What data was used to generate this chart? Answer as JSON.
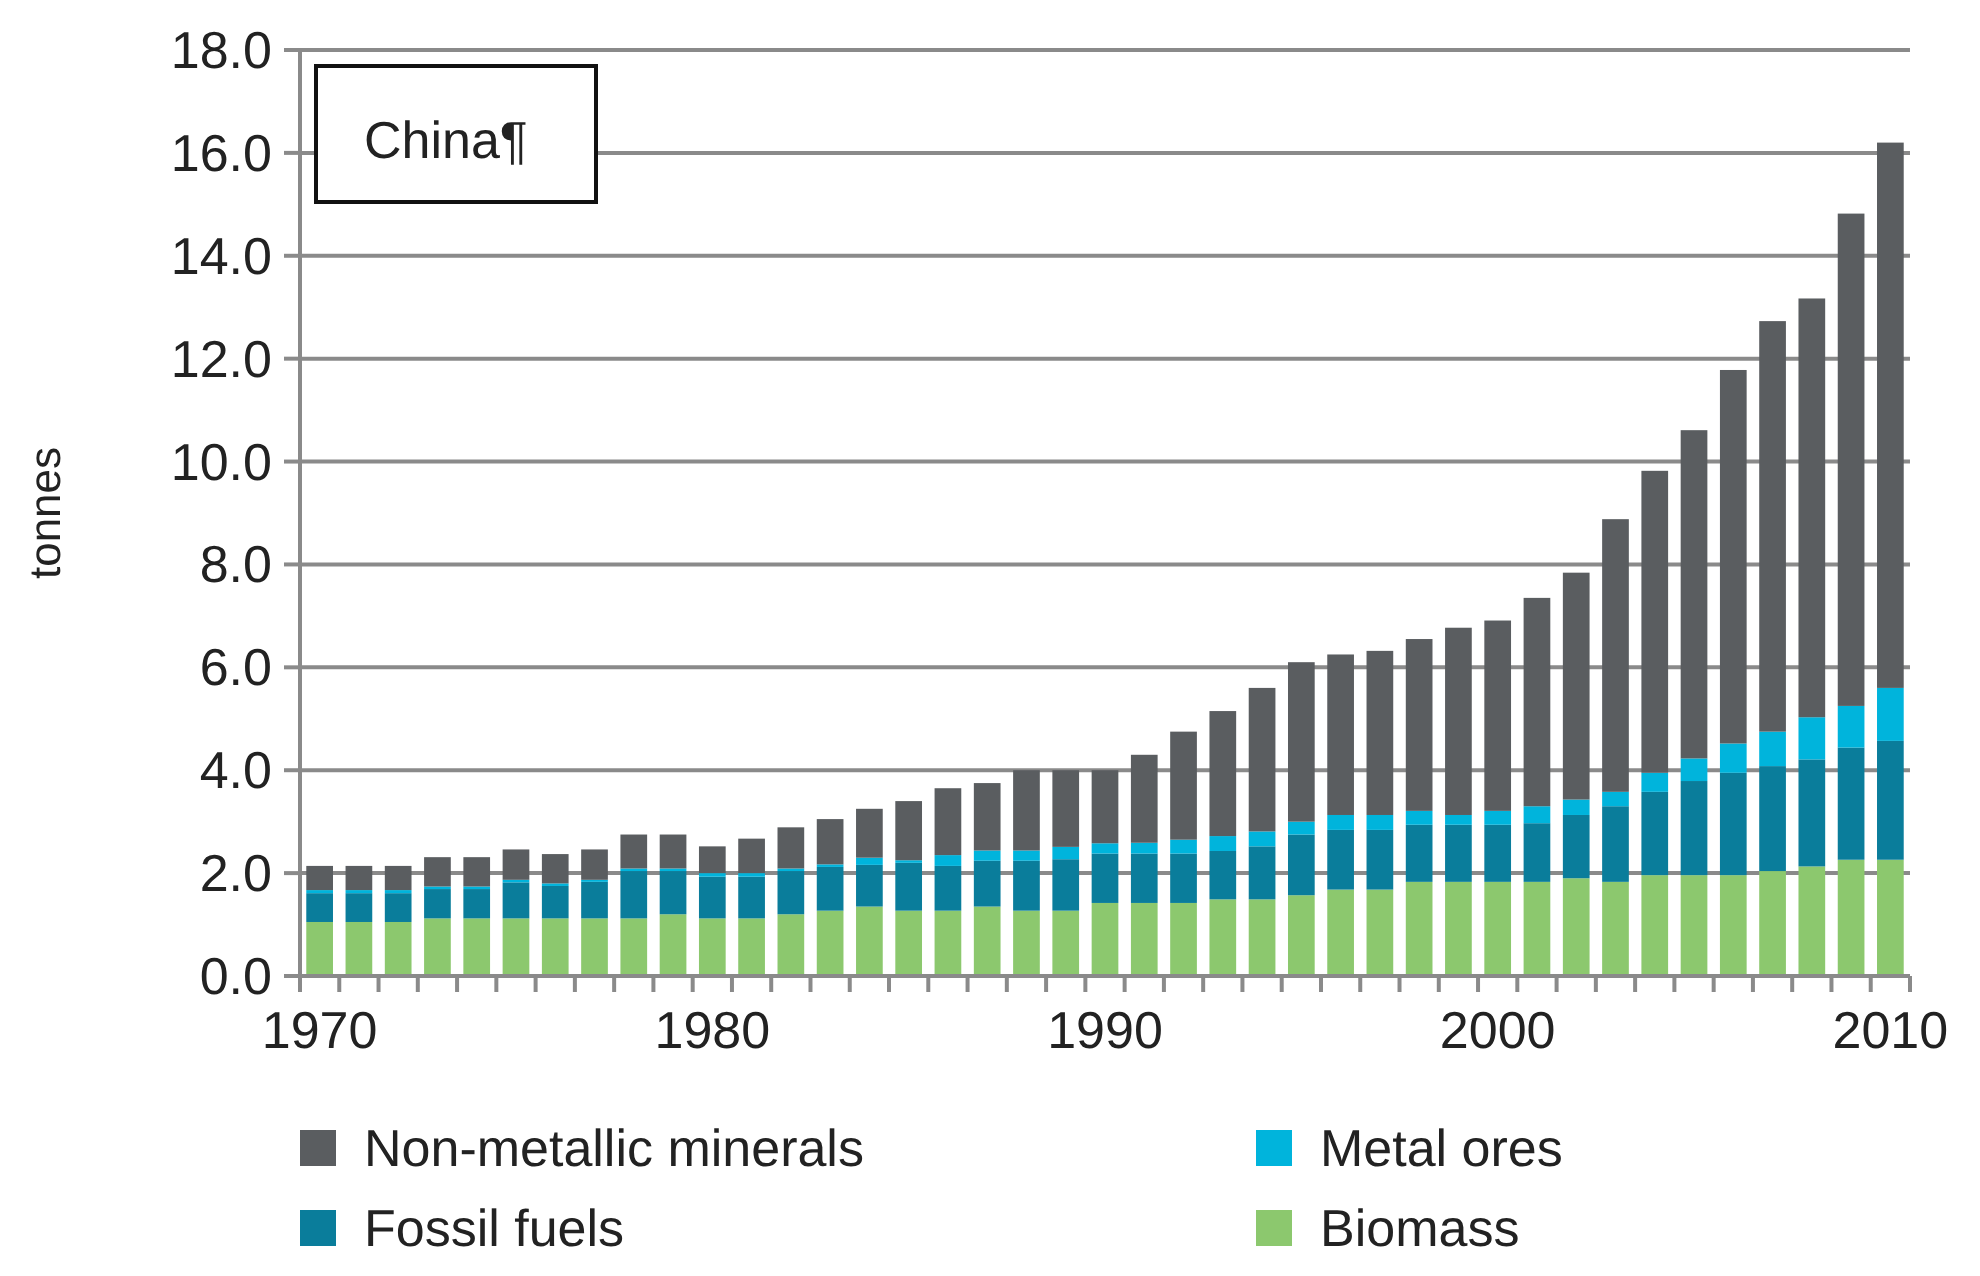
{
  "chart_data": {
    "type": "bar",
    "stacked": true,
    "ylabel": "tonnes",
    "annotations": [
      "China¶"
    ],
    "categories": [
      "1970",
      null,
      null,
      null,
      null,
      null,
      null,
      null,
      null,
      null,
      "1980",
      null,
      null,
      null,
      null,
      null,
      null,
      null,
      null,
      null,
      "1990",
      null,
      null,
      null,
      null,
      null,
      null,
      null,
      null,
      null,
      "2000",
      null,
      null,
      null,
      null,
      null,
      null,
      null,
      null,
      null,
      "2010"
    ],
    "series": [
      {
        "name": "Biomass",
        "color": "#8cc86e",
        "values": [
          1.05,
          1.05,
          1.05,
          1.12,
          1.12,
          1.12,
          1.12,
          1.12,
          1.12,
          1.2,
          1.12,
          1.12,
          1.2,
          1.27,
          1.35,
          1.27,
          1.27,
          1.35,
          1.27,
          1.27,
          1.42,
          1.42,
          1.42,
          1.49,
          1.49,
          1.57,
          1.68,
          1.68,
          1.83,
          1.83,
          1.83,
          1.83,
          1.9,
          1.83,
          1.96,
          1.96,
          1.96,
          2.04,
          2.13,
          2.26,
          2.26
        ]
      },
      {
        "name": "Fossil fuels",
        "color": "#0a7d9b",
        "values": [
          0.56,
          0.56,
          0.56,
          0.57,
          0.57,
          0.7,
          0.63,
          0.71,
          0.92,
          0.84,
          0.81,
          0.81,
          0.84,
          0.85,
          0.81,
          0.93,
          0.87,
          0.89,
          0.97,
          1.0,
          0.96,
          0.96,
          0.96,
          0.94,
          1.03,
          1.18,
          1.16,
          1.16,
          1.11,
          1.11,
          1.11,
          1.14,
          1.23,
          1.47,
          1.62,
          1.83,
          1.99,
          2.04,
          2.08,
          2.18,
          2.31
        ]
      },
      {
        "name": "Metal ores",
        "color": "#00b4dc",
        "values": [
          0.06,
          0.06,
          0.06,
          0.05,
          0.05,
          0.05,
          0.05,
          0.04,
          0.05,
          0.05,
          0.07,
          0.07,
          0.05,
          0.05,
          0.14,
          0.05,
          0.21,
          0.2,
          0.2,
          0.24,
          0.2,
          0.21,
          0.27,
          0.29,
          0.29,
          0.25,
          0.29,
          0.29,
          0.27,
          0.19,
          0.27,
          0.33,
          0.3,
          0.28,
          0.37,
          0.44,
          0.57,
          0.67,
          0.82,
          0.81,
          1.03
        ]
      },
      {
        "name": "Non-metallic minerals",
        "color": "#5a5d60",
        "values": [
          0.47,
          0.47,
          0.47,
          0.57,
          0.57,
          0.59,
          0.57,
          0.59,
          0.66,
          0.66,
          0.52,
          0.67,
          0.8,
          0.88,
          0.95,
          1.15,
          1.3,
          1.31,
          1.56,
          1.49,
          1.42,
          1.71,
          2.1,
          2.43,
          2.79,
          3.1,
          3.12,
          3.19,
          3.34,
          3.64,
          3.7,
          4.05,
          4.41,
          5.3,
          5.87,
          6.38,
          7.26,
          7.98,
          8.14,
          9.57,
          10.6
        ]
      }
    ],
    "ylim": [
      0,
      18
    ],
    "yticks": [
      {
        "value": 0,
        "label": "0.0"
      },
      {
        "value": 2,
        "label": "2.0"
      },
      {
        "value": 4,
        "label": "4.0"
      },
      {
        "value": 6,
        "label": "6.0"
      },
      {
        "value": 8,
        "label": "8.0"
      },
      {
        "value": 10,
        "label": "10.0"
      },
      {
        "value": 12,
        "label": "12.0"
      },
      {
        "value": 14,
        "label": "14.0"
      },
      {
        "value": 16,
        "label": "16.0"
      },
      {
        "value": 18,
        "label": "18.0"
      }
    ],
    "grid": "y",
    "legend": "bottom"
  }
}
